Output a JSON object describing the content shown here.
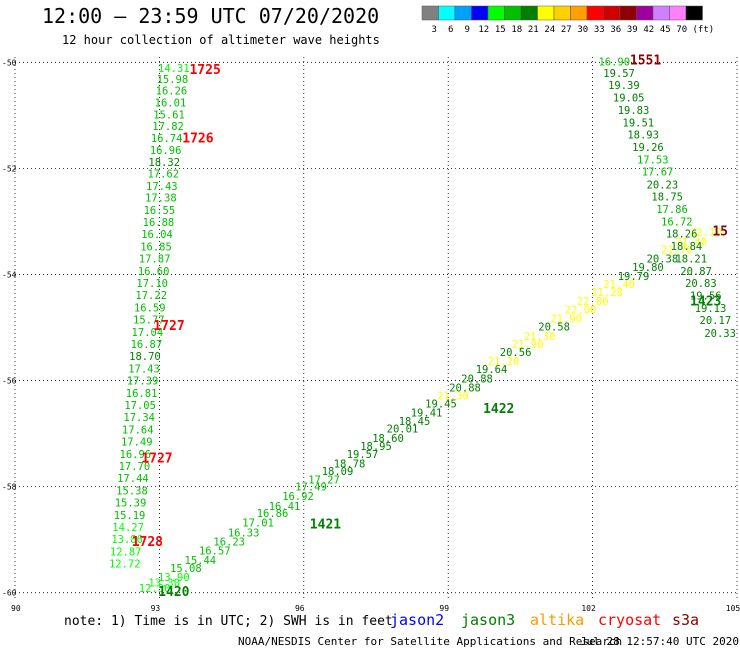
{
  "header": {
    "title": "12:00 — 23:59 UTC 07/20/2020",
    "subtitle": "12 hour collection of altimeter wave heights"
  },
  "colorbar": {
    "unit": "(ft)",
    "bins": [
      {
        "label": "3",
        "color": "#808080"
      },
      {
        "label": "6",
        "color": "#00ffff"
      },
      {
        "label": "9",
        "color": "#00a0ff"
      },
      {
        "label": "12",
        "color": "#0000ff"
      },
      {
        "label": "15",
        "color": "#00ff00"
      },
      {
        "label": "18",
        "color": "#00c000"
      },
      {
        "label": "21",
        "color": "#008000"
      },
      {
        "label": "24",
        "color": "#ffff00"
      },
      {
        "label": "27",
        "color": "#ffd000"
      },
      {
        "label": "30",
        "color": "#ffa000"
      },
      {
        "label": "33",
        "color": "#ff0000"
      },
      {
        "label": "36",
        "color": "#d00000"
      },
      {
        "label": "39",
        "color": "#900000"
      },
      {
        "label": "42",
        "color": "#a000a0"
      },
      {
        "label": "45",
        "color": "#d080ff"
      },
      {
        "label": "70",
        "color": "#ff80ff"
      },
      {
        "label": "",
        "color": "#000000"
      }
    ]
  },
  "footer": {
    "note": "note: 1) Time is in UTC; 2) SWH is in feet",
    "credit": "NOAA/NESDIS Center for Satellite Applications and Research",
    "timestamp": "Jul 28 12:57:40 UTC 2020",
    "satellites": [
      {
        "name": "jason2",
        "color": "#0000ff"
      },
      {
        "name": "jason3",
        "color": "#008000"
      },
      {
        "name": "altika",
        "color": "#ff9900"
      },
      {
        "name": "cryosat",
        "color": "#ff0000"
      },
      {
        "name": "s3a",
        "color": "#8b0000"
      }
    ]
  },
  "chart_data": {
    "type": "scatter",
    "title": "12:00 — 23:59 UTC 07/20/2020",
    "subtitle": "12 hour collection of altimeter wave heights",
    "xlim": [
      90,
      105
    ],
    "ylim": [
      -60.1,
      -49.9
    ],
    "xticks": [
      90,
      93,
      96,
      99,
      102,
      105
    ],
    "yticks": [
      -50,
      -52,
      -54,
      -56,
      -58,
      -60
    ],
    "grid": true,
    "series": [
      {
        "name": "track-1725-1728",
        "points": [
          {
            "x": 93.3,
            "y": -50.13,
            "v": "14.31",
            "c": "#00ff00"
          },
          {
            "x": 93.27,
            "y": -50.33,
            "v": "15.98",
            "c": "#00c000"
          },
          {
            "x": 93.25,
            "y": -50.55,
            "v": "16.26",
            "c": "#00c000"
          },
          {
            "x": 93.23,
            "y": -50.78,
            "v": "16.01",
            "c": "#00c000"
          },
          {
            "x": 93.2,
            "y": -51.0,
            "v": "15.61",
            "c": "#00c000"
          },
          {
            "x": 93.18,
            "y": -51.22,
            "v": "17.82",
            "c": "#00c000"
          },
          {
            "x": 93.15,
            "y": -51.45,
            "v": "16.74",
            "c": "#00c000"
          },
          {
            "x": 93.13,
            "y": -51.67,
            "v": "16.96",
            "c": "#00c000"
          },
          {
            "x": 93.1,
            "y": -51.9,
            "v": "18.32",
            "c": "#008000"
          },
          {
            "x": 93.08,
            "y": -52.12,
            "v": "17.62",
            "c": "#00c000"
          },
          {
            "x": 93.05,
            "y": -52.35,
            "v": "17.43",
            "c": "#00c000"
          },
          {
            "x": 93.03,
            "y": -52.57,
            "v": "17.38",
            "c": "#00c000"
          },
          {
            "x": 93.0,
            "y": -52.8,
            "v": "16.55",
            "c": "#00c000"
          },
          {
            "x": 92.98,
            "y": -53.03,
            "v": "16.88",
            "c": "#00c000"
          },
          {
            "x": 92.95,
            "y": -53.26,
            "v": "16.04",
            "c": "#00c000"
          },
          {
            "x": 92.93,
            "y": -53.49,
            "v": "16.85",
            "c": "#00c000"
          },
          {
            "x": 92.9,
            "y": -53.72,
            "v": "17.87",
            "c": "#00c000"
          },
          {
            "x": 92.88,
            "y": -53.95,
            "v": "16.60",
            "c": "#00c000"
          },
          {
            "x": 92.85,
            "y": -54.18,
            "v": "17.10",
            "c": "#00c000"
          },
          {
            "x": 92.83,
            "y": -54.41,
            "v": "17.22",
            "c": "#00c000"
          },
          {
            "x": 92.8,
            "y": -54.64,
            "v": "16.59",
            "c": "#00c000"
          },
          {
            "x": 92.78,
            "y": -54.87,
            "v": "15.77",
            "c": "#00c000"
          },
          {
            "x": 92.75,
            "y": -55.1,
            "v": "17.04",
            "c": "#00c000"
          },
          {
            "x": 92.73,
            "y": -55.33,
            "v": "16.87",
            "c": "#00c000"
          },
          {
            "x": 92.7,
            "y": -55.56,
            "v": "18.70",
            "c": "#008000"
          },
          {
            "x": 92.68,
            "y": -55.79,
            "v": "17.43",
            "c": "#00c000"
          },
          {
            "x": 92.65,
            "y": -56.02,
            "v": "17.39",
            "c": "#00c000"
          },
          {
            "x": 92.63,
            "y": -56.25,
            "v": "16.81",
            "c": "#00c000"
          },
          {
            "x": 92.6,
            "y": -56.48,
            "v": "17.05",
            "c": "#00c000"
          },
          {
            "x": 92.58,
            "y": -56.71,
            "v": "17.34",
            "c": "#00c000"
          },
          {
            "x": 92.55,
            "y": -56.94,
            "v": "17.64",
            "c": "#00c000"
          },
          {
            "x": 92.53,
            "y": -57.17,
            "v": "17.49",
            "c": "#00c000"
          },
          {
            "x": 92.5,
            "y": -57.4,
            "v": "16.96",
            "c": "#00c000"
          },
          {
            "x": 92.48,
            "y": -57.63,
            "v": "17.70",
            "c": "#00c000"
          },
          {
            "x": 92.45,
            "y": -57.86,
            "v": "17.44",
            "c": "#00c000"
          },
          {
            "x": 92.43,
            "y": -58.09,
            "v": "15.38",
            "c": "#00c000"
          },
          {
            "x": 92.4,
            "y": -58.32,
            "v": "15.39",
            "c": "#00c000"
          },
          {
            "x": 92.38,
            "y": -58.55,
            "v": "15.19",
            "c": "#00c000"
          },
          {
            "x": 92.35,
            "y": -58.78,
            "v": "14.27",
            "c": "#00ff00"
          },
          {
            "x": 92.33,
            "y": -59.01,
            "v": "13.86",
            "c": "#00ff00"
          },
          {
            "x": 92.3,
            "y": -59.24,
            "v": "12.87",
            "c": "#00ff00"
          },
          {
            "x": 92.28,
            "y": -59.47,
            "v": "12.72",
            "c": "#00ff00"
          }
        ]
      },
      {
        "name": "track-1420-1423",
        "points": [
          {
            "x": 92.9,
            "y": -59.93,
            "v": "12.30",
            "c": "#00ff00"
          },
          {
            "x": 93.1,
            "y": -59.83,
            "v": "13.30",
            "c": "#00ff00"
          },
          {
            "x": 93.3,
            "y": -59.72,
            "v": "13.90",
            "c": "#00ff00"
          },
          {
            "x": 93.55,
            "y": -59.55,
            "v": "15.08",
            "c": "#00c000"
          },
          {
            "x": 93.85,
            "y": -59.4,
            "v": "15.44",
            "c": "#00c000"
          },
          {
            "x": 94.15,
            "y": -59.22,
            "v": "16.57",
            "c": "#00c000"
          },
          {
            "x": 94.45,
            "y": -59.05,
            "v": "16.23",
            "c": "#00c000"
          },
          {
            "x": 94.75,
            "y": -58.88,
            "v": "16.33",
            "c": "#00c000"
          },
          {
            "x": 95.05,
            "y": -58.7,
            "v": "17.01",
            "c": "#00c000"
          },
          {
            "x": 95.35,
            "y": -58.52,
            "v": "16.86",
            "c": "#00c000"
          },
          {
            "x": 95.6,
            "y": -58.38,
            "v": "16.41",
            "c": "#00c000"
          },
          {
            "x": 95.88,
            "y": -58.2,
            "v": "16.92",
            "c": "#00c000"
          },
          {
            "x": 96.15,
            "y": -58.02,
            "v": "17.49",
            "c": "#00c000"
          },
          {
            "x": 96.42,
            "y": -57.88,
            "v": "17.27",
            "c": "#00c000"
          },
          {
            "x": 96.7,
            "y": -57.72,
            "v": "18.09",
            "c": "#008000"
          },
          {
            "x": 96.95,
            "y": -57.58,
            "v": "18.78",
            "c": "#008000"
          },
          {
            "x": 97.22,
            "y": -57.4,
            "v": "19.57",
            "c": "#008000"
          },
          {
            "x": 97.5,
            "y": -57.25,
            "v": "18.95",
            "c": "#008000"
          },
          {
            "x": 97.75,
            "y": -57.1,
            "v": "18.60",
            "c": "#008000"
          },
          {
            "x": 98.05,
            "y": -56.92,
            "v": "20.01",
            "c": "#008000"
          },
          {
            "x": 98.3,
            "y": -56.78,
            "v": "18.45",
            "c": "#008000"
          },
          {
            "x": 98.55,
            "y": -56.62,
            "v": "19.41",
            "c": "#008000"
          },
          {
            "x": 98.85,
            "y": -56.45,
            "v": "19.45",
            "c": "#008000"
          },
          {
            "x": 99.1,
            "y": -56.3,
            "v": "21.30",
            "c": "#ffff00"
          },
          {
            "x": 99.35,
            "y": -56.15,
            "v": "20.88",
            "c": "#008000"
          },
          {
            "x": 99.6,
            "y": -55.98,
            "v": "20.88",
            "c": "#008000"
          },
          {
            "x": 99.9,
            "y": -55.8,
            "v": "19.64",
            "c": "#008000"
          },
          {
            "x": 100.15,
            "y": -55.65,
            "v": "21.20",
            "c": "#ffff00"
          },
          {
            "x": 100.4,
            "y": -55.48,
            "v": "20.56",
            "c": "#008000"
          },
          {
            "x": 100.65,
            "y": -55.33,
            "v": "21.90",
            "c": "#ffff00"
          },
          {
            "x": 100.9,
            "y": -55.18,
            "v": "21.30",
            "c": "#ffff00"
          },
          {
            "x": 101.2,
            "y": -55.0,
            "v": "20.58",
            "c": "#008000"
          },
          {
            "x": 101.45,
            "y": -54.85,
            "v": "21.90",
            "c": "#ffff00"
          },
          {
            "x": 101.75,
            "y": -54.68,
            "v": "22.00",
            "c": "#ffff00"
          },
          {
            "x": 102.0,
            "y": -54.52,
            "v": "22.80",
            "c": "#ffff00"
          },
          {
            "x": 102.3,
            "y": -54.35,
            "v": "21.28",
            "c": "#ffff00"
          },
          {
            "x": 102.55,
            "y": -54.2,
            "v": "21.40",
            "c": "#ffff00"
          },
          {
            "x": 102.85,
            "y": -54.05,
            "v": "19.79",
            "c": "#008000"
          },
          {
            "x": 103.15,
            "y": -53.88,
            "v": "19.80",
            "c": "#008000"
          },
          {
            "x": 103.45,
            "y": -53.72,
            "v": "20.38",
            "c": "#008000"
          },
          {
            "x": 103.75,
            "y": -53.55,
            "v": "21.70",
            "c": "#ffff00"
          },
          {
            "x": 104.05,
            "y": -53.4,
            "v": "21.40",
            "c": "#ffff00"
          },
          {
            "x": 104.35,
            "y": -53.22,
            "v": "22.10",
            "c": "#ffff00"
          }
        ]
      },
      {
        "name": "track-1551",
        "points": [
          {
            "x": 102.45,
            "y": -50.0,
            "v": "16.90",
            "c": "#00c000"
          },
          {
            "x": 102.55,
            "y": -50.22,
            "v": "19.57",
            "c": "#008000"
          },
          {
            "x": 102.65,
            "y": -50.45,
            "v": "19.39",
            "c": "#008000"
          },
          {
            "x": 102.75,
            "y": -50.68,
            "v": "19.05",
            "c": "#008000"
          },
          {
            "x": 102.85,
            "y": -50.92,
            "v": "19.83",
            "c": "#008000"
          },
          {
            "x": 102.95,
            "y": -51.15,
            "v": "19.51",
            "c": "#008000"
          },
          {
            "x": 103.05,
            "y": -51.38,
            "v": "18.93",
            "c": "#008000"
          },
          {
            "x": 103.15,
            "y": -51.62,
            "v": "19.26",
            "c": "#008000"
          },
          {
            "x": 103.25,
            "y": -51.85,
            "v": "17.53",
            "c": "#00c000"
          },
          {
            "x": 103.35,
            "y": -52.08,
            "v": "17.67",
            "c": "#00c000"
          },
          {
            "x": 103.45,
            "y": -52.32,
            "v": "20.23",
            "c": "#008000"
          },
          {
            "x": 103.55,
            "y": -52.55,
            "v": "18.75",
            "c": "#008000"
          },
          {
            "x": 103.65,
            "y": -52.78,
            "v": "17.86",
            "c": "#00c000"
          },
          {
            "x": 103.75,
            "y": -53.02,
            "v": "16.72",
            "c": "#00c000"
          },
          {
            "x": 103.85,
            "y": -53.25,
            "v": "18.26",
            "c": "#008000"
          },
          {
            "x": 103.95,
            "y": -53.48,
            "v": "18.84",
            "c": "#008000"
          },
          {
            "x": 104.05,
            "y": -53.72,
            "v": "18.21",
            "c": "#008000"
          },
          {
            "x": 104.15,
            "y": -53.95,
            "v": "20.87",
            "c": "#008000"
          },
          {
            "x": 104.25,
            "y": -54.18,
            "v": "20.83",
            "c": "#008000"
          },
          {
            "x": 104.35,
            "y": -54.42,
            "v": "19.56",
            "c": "#008000"
          },
          {
            "x": 104.45,
            "y": -54.65,
            "v": "19.13",
            "c": "#008000"
          },
          {
            "x": 104.55,
            "y": -54.88,
            "v": "20.17",
            "c": "#008000"
          },
          {
            "x": 104.65,
            "y": -55.12,
            "v": "20.33",
            "c": "#008000"
          }
        ]
      }
    ],
    "annotations": [
      {
        "text": "1725",
        "x": 93.95,
        "y": -50.15,
        "color": "#ff0000"
      },
      {
        "text": "1726",
        "x": 93.8,
        "y": -51.45,
        "color": "#ff0000"
      },
      {
        "text": "1727",
        "x": 93.2,
        "y": -54.98,
        "color": "#ff0000"
      },
      {
        "text": "1727",
        "x": 92.95,
        "y": -57.48,
        "color": "#ff0000"
      },
      {
        "text": "1728",
        "x": 92.75,
        "y": -59.05,
        "color": "#ff0000"
      },
      {
        "text": "1420",
        "x": 93.3,
        "y": -60.0,
        "color": "#008000"
      },
      {
        "text": "1421",
        "x": 96.45,
        "y": -58.72,
        "color": "#008000"
      },
      {
        "text": "1422",
        "x": 100.05,
        "y": -56.55,
        "color": "#008000"
      },
      {
        "text": "1423",
        "x": 104.35,
        "y": -54.52,
        "color": "#008000"
      },
      {
        "text": "1551",
        "x": 103.1,
        "y": -49.98,
        "color": "#8b0000"
      },
      {
        "text": "15",
        "x": 104.65,
        "y": -53.2,
        "color": "#8b0000"
      }
    ]
  }
}
